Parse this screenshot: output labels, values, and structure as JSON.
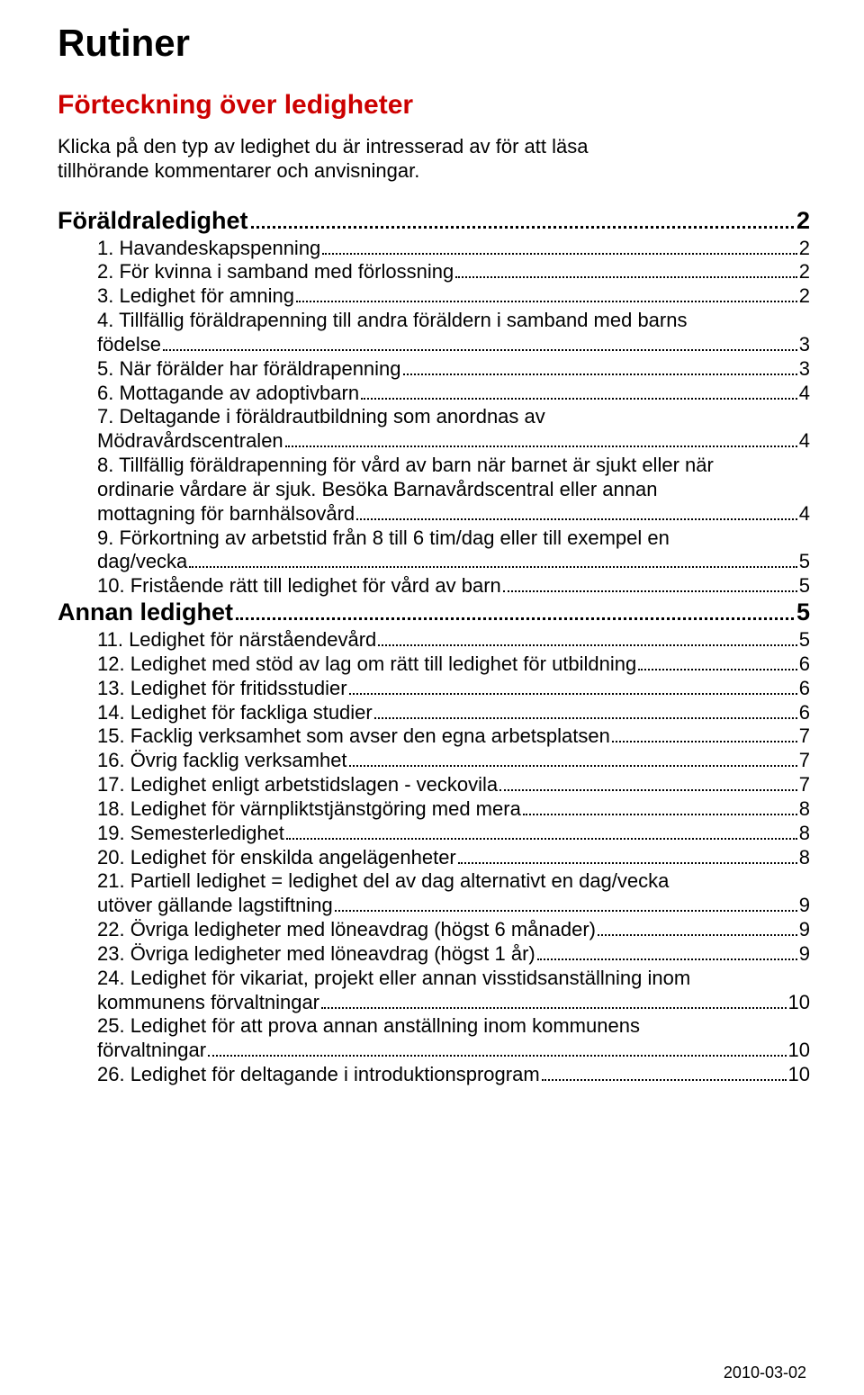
{
  "colors": {
    "section_red": "#cc0000",
    "text": "#000000",
    "background": "#ffffff"
  },
  "typography": {
    "title_fontsize": 42,
    "section_fontsize": 30,
    "heading_fontsize": 27,
    "body_fontsize": 22,
    "footer_fontsize": 18,
    "font_family": "Arial"
  },
  "title": "Rutiner",
  "section_title": "Förteckning över ledigheter",
  "intro_line1": "Klicka på den typ av ledighet du är intresserad av för att läsa",
  "intro_line2": "tillhörande kommentarer och anvisningar.",
  "heading1": {
    "label": "Föräldraledighet",
    "page": "2"
  },
  "items1": [
    {
      "lines": [
        "1. Havandeskapspenning"
      ],
      "page": "2"
    },
    {
      "lines": [
        "2. För kvinna i samband med förlossning"
      ],
      "page": "2"
    },
    {
      "lines": [
        "3. Ledighet för amning"
      ],
      "page": "2"
    },
    {
      "lines": [
        "4. Tillfällig föräldrapenning till andra föräldern i samband med barns",
        "födelse"
      ],
      "page": "3"
    },
    {
      "lines": [
        "5. När förälder har föräldrapenning"
      ],
      "page": "3"
    },
    {
      "lines": [
        "6. Mottagande av adoptivbarn"
      ],
      "page": "4"
    },
    {
      "lines": [
        "7. Deltagande i föräldrautbildning som anordnas av",
        "Mödravårdscentralen"
      ],
      "page": "4"
    },
    {
      "lines": [
        "8. Tillfällig föräldrapenning för vård av barn när barnet är sjukt eller när",
        "ordinarie vårdare är sjuk. Besöka Barnavårdscentral eller annan",
        "mottagning för barnhälsovård"
      ],
      "page": "4"
    },
    {
      "lines": [
        "9. Förkortning av arbetstid från 8 till 6 tim/dag eller till exempel en",
        "dag/vecka"
      ],
      "page": "5"
    },
    {
      "lines": [
        "10. Fristående rätt till ledighet för vård av barn"
      ],
      "page": "5"
    }
  ],
  "heading2": {
    "label": "Annan ledighet",
    "page": "5"
  },
  "items2": [
    {
      "lines": [
        "11. Ledighet för närståendevård"
      ],
      "page": "5"
    },
    {
      "lines": [
        "12. Ledighet med stöd av lag om rätt till ledighet för utbildning"
      ],
      "page": "6"
    },
    {
      "lines": [
        "13. Ledighet för fritidsstudier"
      ],
      "page": "6"
    },
    {
      "lines": [
        "14. Ledighet för fackliga studier"
      ],
      "page": "6"
    },
    {
      "lines": [
        "15. Facklig verksamhet som avser den egna arbetsplatsen"
      ],
      "page": "7"
    },
    {
      "lines": [
        "16. Övrig facklig verksamhet"
      ],
      "page": "7"
    },
    {
      "lines": [
        "17. Ledighet enligt arbetstidslagen - veckovila"
      ],
      "page": "7"
    },
    {
      "lines": [
        "18. Ledighet för värnpliktstjänstgöring med mera"
      ],
      "page": "8"
    },
    {
      "lines": [
        "19. Semesterledighet"
      ],
      "page": "8"
    },
    {
      "lines": [
        "20. Ledighet för enskilda angelägenheter"
      ],
      "page": "8"
    },
    {
      "lines": [
        "21. Partiell ledighet = ledighet del av dag alternativt en dag/vecka",
        "utöver gällande lagstiftning"
      ],
      "page": "9"
    },
    {
      "lines": [
        "22. Övriga ledigheter med löneavdrag (högst 6 månader)"
      ],
      "page": "9"
    },
    {
      "lines": [
        "23. Övriga ledigheter med löneavdrag (högst 1 år)"
      ],
      "page": "9"
    },
    {
      "lines": [
        "24. Ledighet för vikariat, projekt eller annan visstidsanställning inom",
        "kommunens förvaltningar"
      ],
      "page": "10"
    },
    {
      "lines": [
        "25. Ledighet för att prova annan anställning inom kommunens",
        "förvaltningar"
      ],
      "page": "10"
    },
    {
      "lines": [
        "26. Ledighet för deltagande i introduktionsprogram"
      ],
      "page": "10"
    }
  ],
  "footer_date": "2010-03-02"
}
